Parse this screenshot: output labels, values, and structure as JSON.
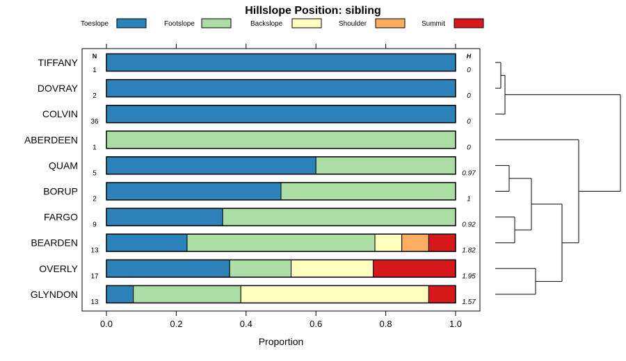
{
  "chart_data": {
    "type": "bar",
    "orientation": "horizontal",
    "stacked": true,
    "title": "Hillslope Position: sibling",
    "xlabel": "Proportion",
    "ylabel": "",
    "xlim": [
      0,
      1
    ],
    "xticks": [
      "0.0",
      "0.2",
      "0.4",
      "0.6",
      "0.8",
      "1.0"
    ],
    "n_header": "N",
    "h_header": "H",
    "legend_position": "top",
    "series": [
      {
        "name": "Toeslope",
        "color": "#2B83BA"
      },
      {
        "name": "Footslope",
        "color": "#ABDDA4"
      },
      {
        "name": "Backslope",
        "color": "#FFFFBF"
      },
      {
        "name": "Shoulder",
        "color": "#FDAE61"
      },
      {
        "name": "Summit",
        "color": "#D7191C"
      }
    ],
    "categories": [
      "TIFFANY",
      "DOVRAY",
      "COLVIN",
      "ABERDEEN",
      "QUAM",
      "BORUP",
      "FARGO",
      "BEARDEN",
      "OVERLY",
      "GLYNDON"
    ],
    "n": [
      "1",
      "2",
      "36",
      "1",
      "5",
      "2",
      "9",
      "13",
      "17",
      "13"
    ],
    "h": [
      "0",
      "0",
      "0",
      "0",
      "0.97",
      "1",
      "0.92",
      "1.82",
      "1.95",
      "1.57"
    ],
    "values": [
      [
        1,
        0,
        0,
        0,
        0
      ],
      [
        1,
        0,
        0,
        0,
        0
      ],
      [
        1,
        0,
        0,
        0,
        0
      ],
      [
        0,
        1,
        0,
        0,
        0
      ],
      [
        0.6,
        0.4,
        0,
        0,
        0
      ],
      [
        0.5,
        0.5,
        0,
        0,
        0
      ],
      [
        0.333,
        0.667,
        0,
        0,
        0
      ],
      [
        0.231,
        0.538,
        0.077,
        0.077,
        0.077
      ],
      [
        0.353,
        0.176,
        0.235,
        0,
        0.235
      ],
      [
        0.077,
        0.308,
        0.538,
        0,
        0.077
      ]
    ],
    "dendrogram": {
      "leaf_order": [
        "TIFFANY",
        "DOVRAY",
        "COLVIN",
        "ABERDEEN",
        "QUAM",
        "BORUP",
        "FARGO",
        "BEARDEN",
        "OVERLY",
        "GLYNDON"
      ],
      "merges": [
        {
          "a": "TIFFANY",
          "b": "DOVRAY",
          "height": 0.02
        },
        {
          "a": "TIFFANY+DOVRAY",
          "b": "COLVIN",
          "height": 0.035
        },
        {
          "a": "QUAM",
          "b": "BORUP",
          "height": 0.05
        },
        {
          "a": "FARGO",
          "b": "BEARDEN",
          "height": 0.07
        },
        {
          "a": "QUAM+BORUP",
          "b": "FARGO+BEARDEN",
          "height": 0.13
        },
        {
          "a": "OVERLY",
          "b": "GLYNDON",
          "height": 0.145
        },
        {
          "a": "QUAM-BEARDEN",
          "b": "OVERLY+GLYNDON",
          "height": 0.24
        },
        {
          "a": "ABERDEEN",
          "b": "QUAM-GLYNDON",
          "height": 0.3
        },
        {
          "a": "TIFFANY-COLVIN",
          "b": "ABERDEEN-GLYNDON",
          "height": 0.45
        }
      ]
    }
  }
}
